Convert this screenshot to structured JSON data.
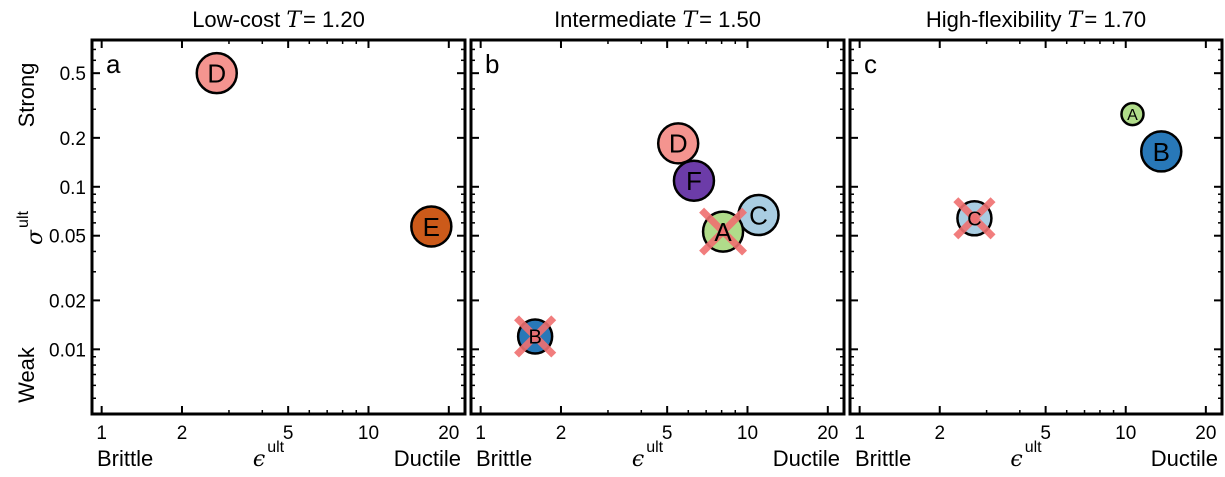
{
  "chart_data": [
    {
      "type": "scatter",
      "panel_label": "a",
      "title_text": "Low-cost ",
      "title_T": "T",
      "title_value": "= 1.20",
      "xlabel": "ϵ",
      "xlabel_sup": "ult",
      "ylabel": "σ",
      "ylabel_sup": "ult",
      "x_scale": "log",
      "y_scale": "log",
      "xlim": [
        0.92,
        23
      ],
      "ylim": [
        0.004,
        0.8
      ],
      "x_ticks": [
        1,
        2,
        5,
        10,
        20
      ],
      "x_tick_labels": [
        "1",
        "2",
        "5",
        "10",
        "20"
      ],
      "y_ticks": [
        0.01,
        0.02,
        0.05,
        0.1,
        0.2,
        0.5
      ],
      "y_tick_labels": [
        "0.01",
        "0.02",
        "0.05",
        "0.1",
        "0.2",
        "0.5"
      ],
      "x_end_labels": [
        "Brittle",
        "Ductile"
      ],
      "y_end_labels": [
        "Weak",
        "Strong"
      ],
      "show_y_labels": true,
      "points": [
        {
          "label": "D",
          "x": 2.7,
          "y": 0.5,
          "size": "large",
          "color": "#f4948f",
          "crossed": false
        },
        {
          "label": "E",
          "x": 17.2,
          "y": 0.057,
          "size": "large",
          "color": "#cc5a1a",
          "crossed": false
        }
      ]
    },
    {
      "type": "scatter",
      "panel_label": "b",
      "title_text": "Intermediate ",
      "title_T": "T",
      "title_value": "= 1.50",
      "xlabel": "ϵ",
      "xlabel_sup": "ult",
      "ylabel": "",
      "ylabel_sup": "",
      "x_scale": "log",
      "y_scale": "log",
      "xlim": [
        0.92,
        23
      ],
      "ylim": [
        0.004,
        0.8
      ],
      "x_ticks": [
        1,
        2,
        5,
        10,
        20
      ],
      "x_tick_labels": [
        "1",
        "2",
        "5",
        "10",
        "20"
      ],
      "y_ticks": [
        0.01,
        0.02,
        0.05,
        0.1,
        0.2,
        0.5
      ],
      "y_tick_labels": [],
      "x_end_labels": [
        "Brittle",
        "Ductile"
      ],
      "y_end_labels": [],
      "show_y_labels": false,
      "points": [
        {
          "label": "D",
          "x": 5.5,
          "y": 0.185,
          "size": "large",
          "color": "#f4948f",
          "crossed": false
        },
        {
          "label": "F",
          "x": 6.3,
          "y": 0.109,
          "size": "large",
          "color": "#6c3ca8",
          "crossed": false
        },
        {
          "label": "C",
          "x": 11.0,
          "y": 0.067,
          "size": "large",
          "color": "#a9cde2",
          "crossed": false
        },
        {
          "label": "A",
          "x": 8.1,
          "y": 0.053,
          "size": "large",
          "color": "#b0dc8a",
          "crossed": true
        },
        {
          "label": "B",
          "x": 1.6,
          "y": 0.012,
          "size": "medium",
          "color": "#2878b8",
          "crossed": true
        }
      ]
    },
    {
      "type": "scatter",
      "panel_label": "c",
      "title_text": "High-flexibility ",
      "title_T": "T",
      "title_value": "= 1.70",
      "xlabel": "ϵ",
      "xlabel_sup": "ult",
      "ylabel": "",
      "ylabel_sup": "",
      "x_scale": "log",
      "y_scale": "log",
      "xlim": [
        0.92,
        23
      ],
      "ylim": [
        0.004,
        0.8
      ],
      "x_ticks": [
        1,
        2,
        5,
        10,
        20
      ],
      "x_tick_labels": [
        "1",
        "2",
        "5",
        "10",
        "20"
      ],
      "y_ticks": [
        0.01,
        0.02,
        0.05,
        0.1,
        0.2,
        0.5
      ],
      "y_tick_labels": [],
      "x_end_labels": [
        "Brittle",
        "Ductile"
      ],
      "y_end_labels": [],
      "show_y_labels": false,
      "points": [
        {
          "label": "A",
          "x": 10.6,
          "y": 0.28,
          "size": "small",
          "color": "#b0dc8a",
          "crossed": false
        },
        {
          "label": "B",
          "x": 13.6,
          "y": 0.165,
          "size": "large",
          "color": "#2878b8",
          "crossed": false
        },
        {
          "label": "C",
          "x": 2.7,
          "y": 0.064,
          "size": "medium",
          "color": "#a9cde2",
          "crossed": true
        }
      ]
    }
  ],
  "cross_color": "#f07070"
}
